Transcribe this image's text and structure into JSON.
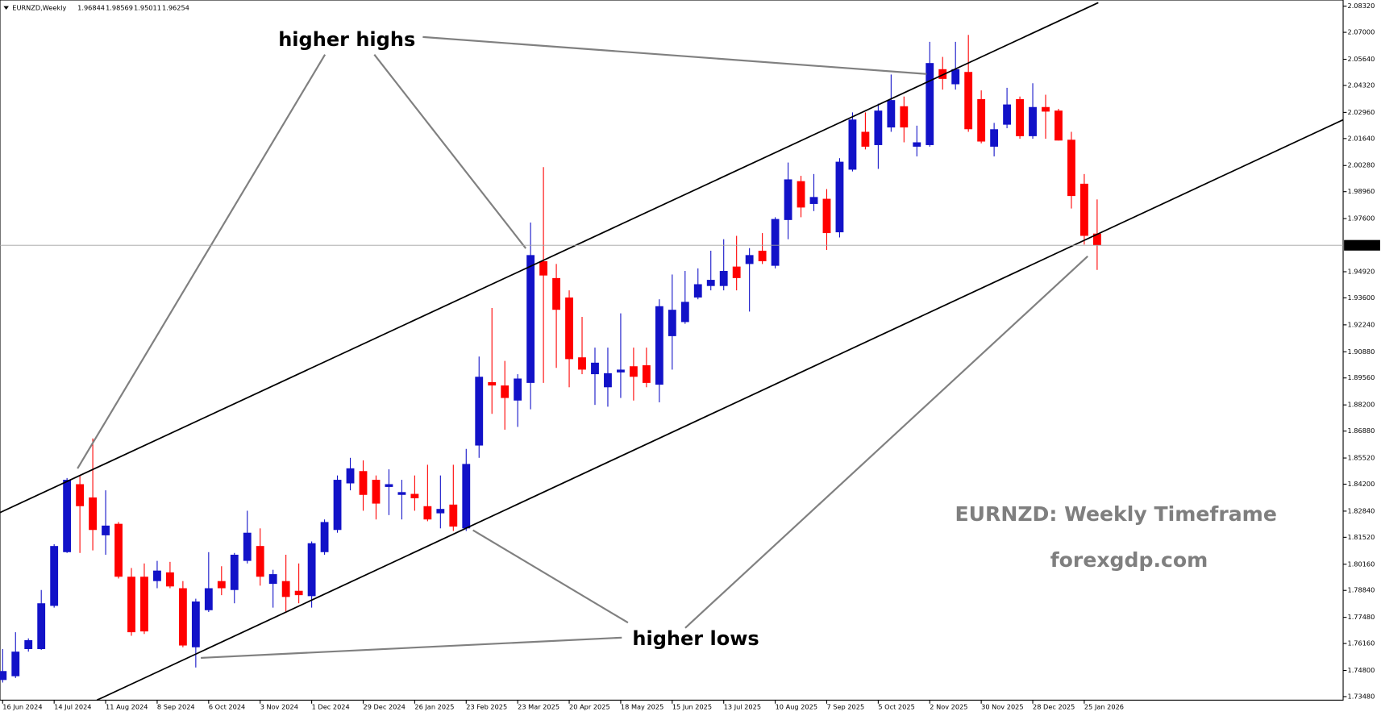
{
  "chart_data": {
    "type": "candlestick",
    "title": "EURNZD,Weekly",
    "categories": [
      "16 Jun 2024",
      null,
      null,
      null,
      "14 Jul 2024",
      null,
      null,
      null,
      "11 Aug 2024",
      null,
      null,
      null,
      "8 Sep 2024",
      null,
      null,
      null,
      "6 Oct 2024",
      null,
      null,
      null,
      "3 Nov 2024",
      null,
      null,
      null,
      "1 Dec 2024",
      null,
      null,
      null,
      "29 Dec 2024",
      null,
      null,
      null,
      "26 Jan 2025",
      null,
      null,
      null,
      "23 Feb 2025",
      null,
      null,
      null,
      "23 Mar 2025",
      null,
      null,
      null,
      "20 Apr 2025",
      null,
      null,
      null,
      "18 May 2025",
      null,
      null,
      null,
      "15 Jun 2025",
      null,
      null,
      null,
      "13 Jul 2025",
      null,
      null,
      null,
      "10 Aug 2025",
      null,
      null,
      null,
      "7 Sep 2025",
      null,
      null,
      null,
      "5 Oct 2025",
      null,
      null,
      null,
      "2 Nov 2025",
      null,
      null,
      null,
      "30 Nov 2025",
      null,
      null,
      null,
      "28 Dec 2025",
      null,
      null,
      null,
      "25 Jan 2026",
      null
    ],
    "open": [
      1.7432,
      1.7451,
      1.7588,
      1.7588,
      1.7806,
      1.8077,
      1.842,
      1.8353,
      1.8162,
      1.822,
      1.7953,
      1.7953,
      1.7931,
      1.7975,
      1.7895,
      1.7597,
      1.7784,
      1.7931,
      1.7886,
      1.8033,
      1.8108,
      1.7917,
      1.7931,
      1.7882,
      1.7855,
      1.8077,
      1.8189,
      1.8424,
      1.8486,
      1.8442,
      1.8406,
      1.8366,
      1.8371,
      1.8309,
      1.8273,
      1.8317,
      1.8197,
      1.8615,
      1.8935,
      1.8918,
      1.8842,
      1.8931,
      1.9545,
      1.946,
      1.9362,
      1.906,
      1.8975,
      1.8909,
      1.8984,
      1.9015,
      1.902,
      1.8922,
      1.9167,
      1.9238,
      1.9362,
      1.942,
      1.942,
      1.9518,
      1.9531,
      1.9598,
      1.9522,
      1.9753,
      1.9949,
      1.9834,
      1.986,
      1.9691,
      2.0007,
      2.0198,
      2.0131,
      2.022,
      2.0327,
      2.0123,
      2.0131,
      2.0514,
      2.0438,
      2.05,
      2.0363,
      2.0123,
      2.0234,
      2.0363,
      2.0176,
      2.0323,
      2.0305,
      2.0158,
      1.9936,
      1.96844
    ],
    "high": [
      1.7588,
      1.7673,
      1.7642,
      1.7886,
      1.8117,
      1.8451,
      1.8464,
      1.8651,
      1.8389,
      1.8229,
      1.7997,
      1.802,
      1.8033,
      1.8028,
      1.7931,
      1.7842,
      1.8077,
      1.8006,
      1.8073,
      1.8286,
      1.8197,
      1.7988,
      1.8064,
      1.802,
      1.8131,
      1.8242,
      1.8464,
      1.8553,
      1.854,
      1.8464,
      1.8495,
      1.8442,
      1.8464,
      1.8518,
      1.8464,
      1.8518,
      1.8598,
      1.9064,
      1.9309,
      1.9042,
      1.8975,
      1.974,
      2.002,
      1.9531,
      1.9398,
      1.9264,
      1.9109,
      1.9109,
      1.9282,
      1.9109,
      1.9109,
      1.9353,
      1.9478,
      1.9496,
      1.9509,
      1.9598,
      1.9656,
      1.9673,
      1.9611,
      1.9687,
      1.9767,
      2.0043,
      1.9976,
      1.9985,
      1.9909,
      2.0065,
      2.0296,
      2.0296,
      2.034,
      2.0487,
      2.0376,
      2.0229,
      2.0652,
      2.0576,
      2.0652,
      2.0687,
      2.0407,
      2.0243,
      2.042,
      2.0376,
      2.0443,
      2.0385,
      2.0314,
      2.0198,
      1.9985,
      1.98569
    ],
    "low": [
      1.7419,
      1.7442,
      1.7575,
      1.7584,
      1.7797,
      1.8073,
      1.8073,
      1.8086,
      1.8064,
      1.7944,
      1.7655,
      1.7664,
      1.7895,
      1.7895,
      1.7597,
      1.7495,
      1.7775,
      1.786,
      1.7819,
      1.802,
      1.7908,
      1.7797,
      1.7775,
      1.7819,
      1.7797,
      1.8064,
      1.8175,
      1.8389,
      1.8286,
      1.8242,
      1.8264,
      1.8242,
      1.8286,
      1.8233,
      1.8197,
      1.8184,
      1.8184,
      1.8553,
      1.8775,
      1.8695,
      1.8709,
      1.8798,
      1.8931,
      1.9007,
      1.8909,
      1.8975,
      1.882,
      1.8811,
      1.8855,
      1.8842,
      1.8909,
      1.8833,
      1.8998,
      1.9229,
      1.9353,
      1.9398,
      1.9398,
      1.9398,
      1.9291,
      1.9531,
      1.9509,
      1.9656,
      1.9767,
      1.9798,
      1.9602,
      1.9665,
      1.9998,
      2.0109,
      2.0011,
      2.0198,
      2.0145,
      2.0074,
      2.0123,
      2.0411,
      2.0411,
      2.0198,
      2.014,
      2.0074,
      2.0216,
      2.0163,
      2.0163,
      2.0163,
      2.0154,
      1.9811,
      1.9629,
      1.95011
    ],
    "close": [
      1.7477,
      1.7575,
      1.7633,
      1.7819,
      1.8108,
      1.8442,
      1.8309,
      1.8189,
      1.8211,
      1.7953,
      1.7673,
      1.7677,
      1.7984,
      1.7904,
      1.7606,
      1.7828,
      1.7895,
      1.7895,
      1.8064,
      1.8175,
      1.7953,
      1.7966,
      1.7851,
      1.786,
      1.8122,
      1.8229,
      1.8442,
      1.85,
      1.8366,
      1.8322,
      1.842,
      1.838,
      1.8349,
      1.8242,
      1.8295,
      1.8206,
      1.8522,
      1.8962,
      1.8918,
      1.8855,
      1.8953,
      1.9576,
      1.9473,
      1.93,
      1.9051,
      1.8998,
      1.9033,
      1.898,
      1.8998,
      1.8962,
      1.8931,
      1.9318,
      1.93,
      1.934,
      1.9429,
      1.9451,
      1.9496,
      1.946,
      1.9576,
      1.9545,
      1.9758,
      1.9958,
      1.9816,
      1.9869,
      1.9687,
      2.0047,
      2.026,
      2.0123,
      2.0305,
      2.0358,
      2.022,
      2.0145,
      2.0545,
      2.0465,
      2.0514,
      2.0211,
      2.0149,
      2.0211,
      2.0336,
      2.0176,
      2.0323,
      2.03,
      2.0154,
      1.9874,
      1.9673,
      1.96254
    ],
    "up_color": "#1212c8",
    "down_color": "#ff0000",
    "ylim": [
      1.7348,
      2.0832
    ],
    "yticks": [
      {
        "value": 2.0832,
        "label": "2.08320"
      },
      {
        "value": 2.07,
        "label": "2.07000"
      },
      {
        "value": 2.0564,
        "label": "2.05640"
      },
      {
        "value": 2.0432,
        "label": "2.04320"
      },
      {
        "value": 2.0296,
        "label": "2.02960"
      },
      {
        "value": 2.0164,
        "label": "2.01640"
      },
      {
        "value": 2.0028,
        "label": "2.00280"
      },
      {
        "value": 1.9896,
        "label": "1.98960"
      },
      {
        "value": 1.976,
        "label": "1.97600"
      },
      {
        "value": 1.9492,
        "label": "1.94920"
      },
      {
        "value": 1.936,
        "label": "1.93600"
      },
      {
        "value": 1.9224,
        "label": "1.92240"
      },
      {
        "value": 1.9088,
        "label": "1.90880"
      },
      {
        "value": 1.8956,
        "label": "1.89560"
      },
      {
        "value": 1.882,
        "label": "1.88200"
      },
      {
        "value": 1.8688,
        "label": "1.86880"
      },
      {
        "value": 1.8552,
        "label": "1.85520"
      },
      {
        "value": 1.842,
        "label": "1.84200"
      },
      {
        "value": 1.8284,
        "label": "1.82840"
      },
      {
        "value": 1.8152,
        "label": "1.81520"
      },
      {
        "value": 1.8016,
        "label": "1.80160"
      },
      {
        "value": 1.7884,
        "label": "1.78840"
      },
      {
        "value": 1.7748,
        "label": "1.77480"
      },
      {
        "value": 1.7616,
        "label": "1.76160"
      },
      {
        "value": 1.748,
        "label": "1.74800"
      },
      {
        "value": 1.7348,
        "label": "1.73480"
      }
    ],
    "annotations": [
      "higher highs",
      "higher lows"
    ],
    "watermark": [
      "EURNZD: Weekly Timeframe",
      "forexgdp.com"
    ]
  }
}
